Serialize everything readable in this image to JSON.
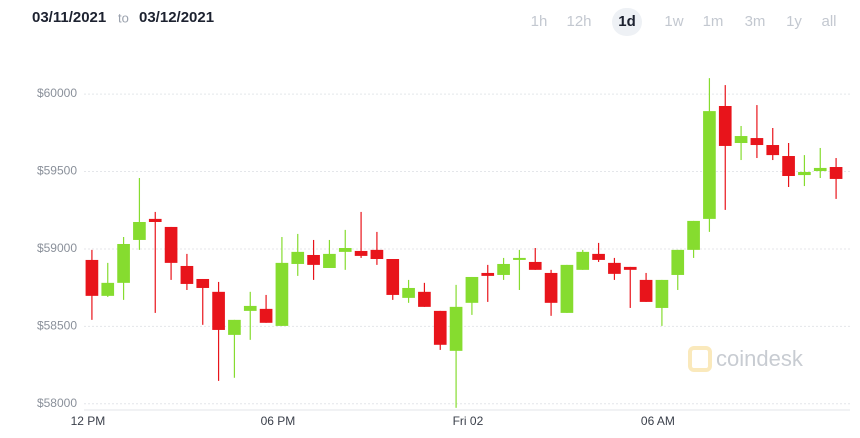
{
  "range_from": "03/11/2021",
  "range_sep": "to",
  "range_to": "03/12/2021",
  "timeframes": [
    "1h",
    "12h",
    "1d",
    "1w",
    "1m",
    "3m",
    "1y",
    "all"
  ],
  "active_timeframe": 2,
  "watermark": "coindesk",
  "chart_data": {
    "type": "candlestick",
    "up_color": "#86dc2f",
    "down_color": "#e8141b",
    "grid": true,
    "ylim": [
      57960,
      60220
    ],
    "yticks": [
      {
        "value": 58000,
        "label": "$58000"
      },
      {
        "value": 58500,
        "label": "$58500"
      },
      {
        "value": 59000,
        "label": "$59000"
      },
      {
        "value": 59500,
        "label": "$59500"
      },
      {
        "value": 60000,
        "label": "$60000"
      }
    ],
    "categories": [
      "12 PM",
      null,
      null,
      null,
      null,
      null,
      null,
      null,
      null,
      null,
      null,
      null,
      "06 PM",
      null,
      null,
      null,
      null,
      null,
      null,
      null,
      null,
      null,
      null,
      null,
      "Fri 02",
      null,
      null,
      null,
      null,
      null,
      null,
      null,
      null,
      null,
      null,
      null,
      "06 AM",
      null,
      null,
      null,
      null,
      null,
      null,
      null,
      null,
      null,
      null,
      null
    ],
    "open": [
      58929,
      58697,
      58781,
      59058,
      59194,
      59142,
      58890,
      58806,
      58723,
      58445,
      58600,
      58613,
      58503,
      58903,
      58961,
      58877,
      58981,
      58987,
      58994,
      58935,
      58684,
      58723,
      58600,
      58342,
      58652,
      58845,
      58832,
      58929,
      58916,
      58845,
      58587,
      58865,
      58968,
      58910,
      58884,
      58800,
      58619,
      58832,
      58994,
      59194,
      59923,
      59684,
      59716,
      59671,
      59600,
      59477,
      59503,
      59529
    ],
    "high": [
      58994,
      58910,
      59077,
      59458,
      59239,
      59142,
      58968,
      58806,
      58787,
      58542,
      58723,
      58703,
      59077,
      59097,
      59058,
      59058,
      59123,
      59239,
      59110,
      58935,
      58800,
      58781,
      58600,
      58768,
      58819,
      58897,
      58942,
      58994,
      59006,
      58865,
      58897,
      58994,
      59039,
      58942,
      58884,
      58845,
      58800,
      58994,
      59181,
      60103,
      60058,
      59794,
      59929,
      59781,
      59684,
      59606,
      59652,
      59587
    ],
    "low": [
      58542,
      58690,
      58671,
      58994,
      58587,
      58800,
      58735,
      58510,
      58148,
      58168,
      58413,
      58523,
      58503,
      58826,
      58800,
      58877,
      58865,
      58942,
      58897,
      58671,
      58652,
      58626,
      58348,
      57974,
      58574,
      58658,
      58800,
      58735,
      58865,
      58568,
      58587,
      58865,
      58916,
      58800,
      58619,
      58658,
      58503,
      58735,
      58942,
      59110,
      59252,
      59574,
      59587,
      59574,
      59400,
      59406,
      59458,
      59323
    ],
    "close": [
      58697,
      58781,
      59032,
      59174,
      59174,
      58910,
      58774,
      58748,
      58477,
      58542,
      58632,
      58523,
      58910,
      58981,
      58897,
      58968,
      59006,
      58955,
      58935,
      58703,
      58748,
      58626,
      58381,
      58626,
      58819,
      58826,
      58903,
      58942,
      58865,
      58652,
      58897,
      58981,
      58929,
      58839,
      58865,
      58658,
      58800,
      58994,
      59181,
      59890,
      59665,
      59729,
      59671,
      59606,
      59471,
      59497,
      59523,
      59452
    ]
  }
}
